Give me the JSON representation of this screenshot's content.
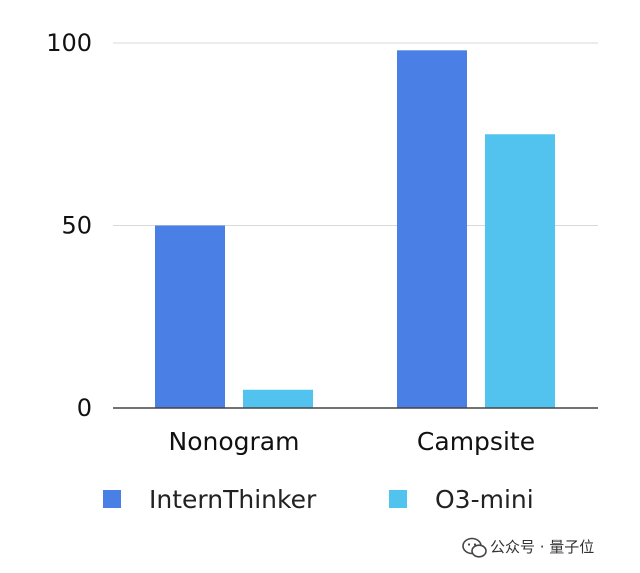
{
  "chart_data": {
    "type": "bar",
    "categories": [
      "Nonogram",
      "Campsite"
    ],
    "series": [
      {
        "name": "InternThinker",
        "values": [
          50,
          98
        ],
        "color": "#4a7fe6"
      },
      {
        "name": "O3-mini",
        "values": [
          5,
          75
        ],
        "color": "#52c3ee"
      }
    ],
    "title": "",
    "xlabel": "",
    "ylabel": "",
    "ylim": [
      0,
      100
    ],
    "yticks": [
      0,
      50,
      100
    ],
    "grid": true,
    "legend_position": "bottom"
  },
  "watermark": {
    "text": "公众号 · 量子位",
    "icon": "wechat-icon"
  }
}
